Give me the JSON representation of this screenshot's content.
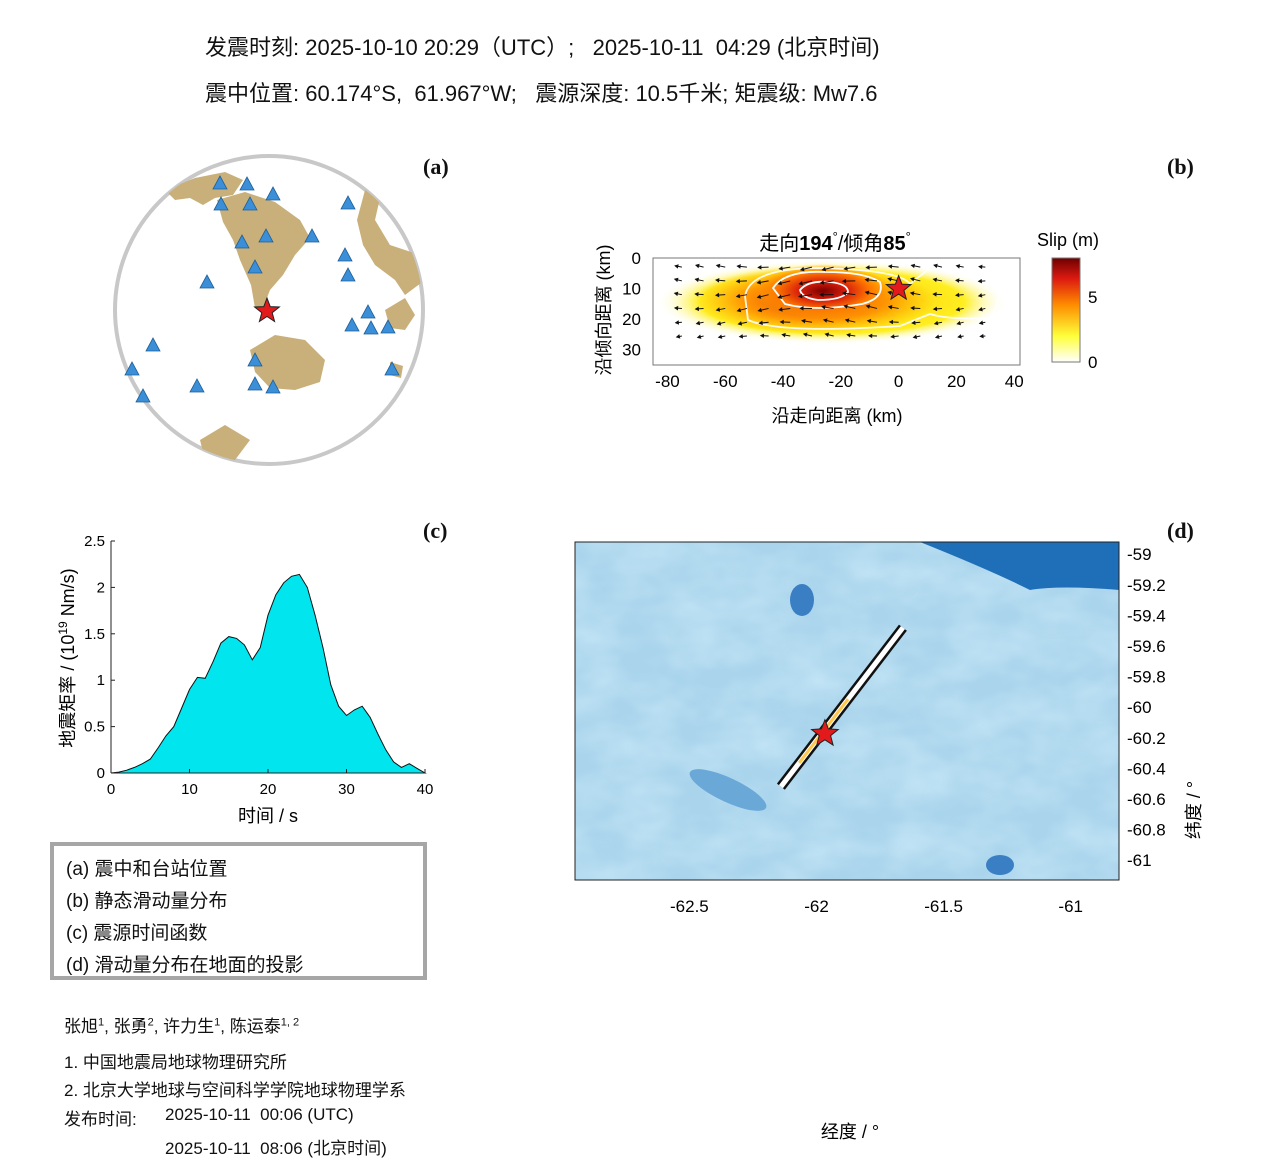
{
  "header": {
    "line1": "发震时刻: 2025-10-10 20:29（UTC）;   2025-10-11  04:29 (北京时间)",
    "line2": "震中位置: 60.174°S,  61.967°W;   震源深度: 10.5千米; 矩震级: Mw7.6"
  },
  "panels": {
    "a": "(a)",
    "b": "(b)",
    "c": "(c)",
    "d": "(d)"
  },
  "legend": {
    "items": [
      "(a) 震中和台站位置",
      "(b) 静态滑动量分布",
      "(c) 震源时间函数",
      "(d) 滑动量分布在地面的投影"
    ]
  },
  "credits": {
    "authors": [
      "张旭",
      "张勇",
      "许力生",
      "陈运泰"
    ],
    "author_sups": [
      "1",
      "2",
      "1",
      "1, 2"
    ],
    "affiliations": [
      "1. 中国地震局地球物理研究所",
      "2. 北京大学地球与空间科学学院地球物理学系"
    ],
    "release_label": "发布时间:",
    "release_utc": "2025-10-11  00:06 (UTC)",
    "release_bj": "2025-10-11  08:06 (北京时间)"
  },
  "colors": {
    "station": "#3a8fd8",
    "epicenter": "#e31a1c",
    "land": "#c9b07a",
    "stf_fill": "#00e5ee",
    "ocean": "#a9d4ec"
  },
  "chart_data": [
    {
      "id": "a",
      "type": "scatter",
      "title": "",
      "description_markers": "stations (blue triangles), epicenter (red star)"
    },
    {
      "id": "b",
      "type": "heatmap",
      "title_prefix": "走向",
      "strike": "194",
      "title_mid": "/倾角",
      "dip": "85",
      "deg": "°",
      "xlabel": "沿走向距离 (km)",
      "ylabel": "沿倾向距离 (km)",
      "xlim": [
        -85,
        42
      ],
      "ylim": [
        35,
        0
      ],
      "xticks": [
        "-80",
        "-60",
        "-40",
        "-20",
        "0",
        "20",
        "40"
      ],
      "yticks": [
        "0",
        "10",
        "20",
        "30"
      ],
      "colorbar_label": "Slip (m)",
      "colorbar_ticks": [
        "0",
        "5"
      ],
      "colorbar_range": [
        0,
        8
      ],
      "hypocenter": [
        0,
        10
      ],
      "max_slip_center": [
        -25,
        10
      ]
    },
    {
      "id": "c",
      "type": "area",
      "xlabel": "时间 / s",
      "ylabel": "地震矩率 / (10",
      "ylabel_exp": "19",
      "ylabel_tail": " Nm/s)",
      "xlim": [
        0,
        40
      ],
      "ylim": [
        0,
        2.5
      ],
      "xticks": [
        "0",
        "10",
        "20",
        "30",
        "40"
      ],
      "yticks": [
        "0",
        "0.5",
        "1",
        "1.5",
        "2",
        "2.5"
      ],
      "x": [
        0,
        1,
        2,
        3,
        4,
        5,
        6,
        7,
        8,
        9,
        10,
        11,
        12,
        13,
        14,
        15,
        16,
        17,
        18,
        19,
        20,
        21,
        22,
        23,
        24,
        25,
        26,
        27,
        28,
        29,
        30,
        31,
        32,
        33,
        34,
        35,
        36,
        37,
        38,
        39,
        40
      ],
      "y": [
        0,
        0.01,
        0.03,
        0.06,
        0.1,
        0.15,
        0.27,
        0.4,
        0.5,
        0.7,
        0.9,
        1.03,
        1.02,
        1.2,
        1.4,
        1.47,
        1.45,
        1.38,
        1.22,
        1.35,
        1.7,
        1.92,
        2.05,
        2.12,
        2.14,
        2.0,
        1.7,
        1.35,
        0.95,
        0.72,
        0.62,
        0.68,
        0.72,
        0.6,
        0.42,
        0.25,
        0.12,
        0.06,
        0.1,
        0.05,
        0
      ]
    },
    {
      "id": "d",
      "type": "map",
      "xlabel": "经度 / °",
      "ylabel": "纬度 / °",
      "xlim": [
        -62.95,
        -60.81
      ],
      "ylim": [
        -61.13,
        -58.92
      ],
      "xticks": [
        "-62.5",
        "-62",
        "-61.5",
        "-61"
      ],
      "yticks": [
        "-59",
        "-59.2",
        "-59.4",
        "-59.6",
        "-59.8",
        "-60",
        "-60.2",
        "-60.4",
        "-60.6",
        "-60.8",
        "-61"
      ],
      "epicenter": [
        -61.967,
        -60.174
      ],
      "fault_trace": [
        [
          -62.14,
          -60.52
        ],
        [
          -61.66,
          -59.48
        ]
      ]
    }
  ]
}
